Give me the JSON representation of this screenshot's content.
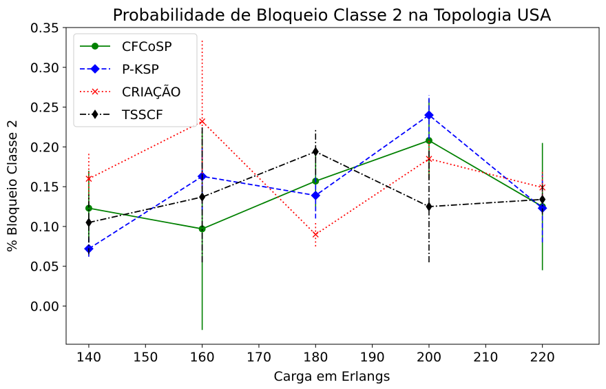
{
  "chart_data": {
    "type": "line",
    "title": "Probabilidade de Bloqueio Classe 2 na Topologia USA",
    "xlabel": "Carga em Erlangs",
    "ylabel": "% Bloqueio Classe 2",
    "x": [
      140,
      160,
      180,
      200,
      220
    ],
    "xlim": [
      136,
      230
    ],
    "ylim": [
      -0.048,
      0.35
    ],
    "xticks": [
      140,
      150,
      160,
      170,
      180,
      190,
      200,
      210,
      220
    ],
    "xtick_labels": [
      "140",
      "150",
      "160",
      "170",
      "180",
      "190",
      "200",
      "210",
      "220"
    ],
    "yticks": [
      0.0,
      0.05,
      0.1,
      0.15,
      0.2,
      0.25,
      0.3,
      0.35
    ],
    "ytick_labels": [
      "0.00",
      "0.05",
      "0.10",
      "0.15",
      "0.20",
      "0.25",
      "0.30",
      "0.35"
    ],
    "grid": false,
    "legend_position": "top-left",
    "series": [
      {
        "name": "CFCoSP",
        "color": "#008000",
        "linestyle": "solid",
        "marker": "circle",
        "values": [
          0.123,
          0.097,
          0.157,
          0.208,
          0.125
        ],
        "err_low": [
          0.08,
          -0.03,
          0.12,
          0.16,
          0.045
        ],
        "err_high": [
          0.17,
          0.22,
          0.19,
          0.26,
          0.205
        ]
      },
      {
        "name": "P-KSP",
        "color": "#0000ff",
        "linestyle": "dashed",
        "marker": "diamond",
        "values": [
          0.072,
          0.163,
          0.139,
          0.24,
          0.123
        ],
        "err_low": [
          0.062,
          0.12,
          0.11,
          0.21,
          0.08
        ],
        "err_high": [
          0.085,
          0.2,
          0.165,
          0.265,
          0.165
        ]
      },
      {
        "name": "CRIAÇÃO",
        "color": "#ff0000",
        "linestyle": "dotted",
        "marker": "x",
        "values": [
          0.16,
          0.232,
          0.09,
          0.185,
          0.149
        ],
        "err_low": [
          0.13,
          0.13,
          0.075,
          0.16,
          0.13
        ],
        "err_high": [
          0.192,
          0.335,
          0.105,
          0.21,
          0.17
        ]
      },
      {
        "name": "TSSCF",
        "color": "#000000",
        "linestyle": "dashdot",
        "marker": "thin-diamond",
        "values": [
          0.105,
          0.137,
          0.194,
          0.125,
          0.134
        ],
        "err_low": [
          0.065,
          0.055,
          0.165,
          0.055,
          0.115
        ],
        "err_high": [
          0.14,
          0.225,
          0.223,
          0.195,
          0.155
        ]
      }
    ]
  }
}
